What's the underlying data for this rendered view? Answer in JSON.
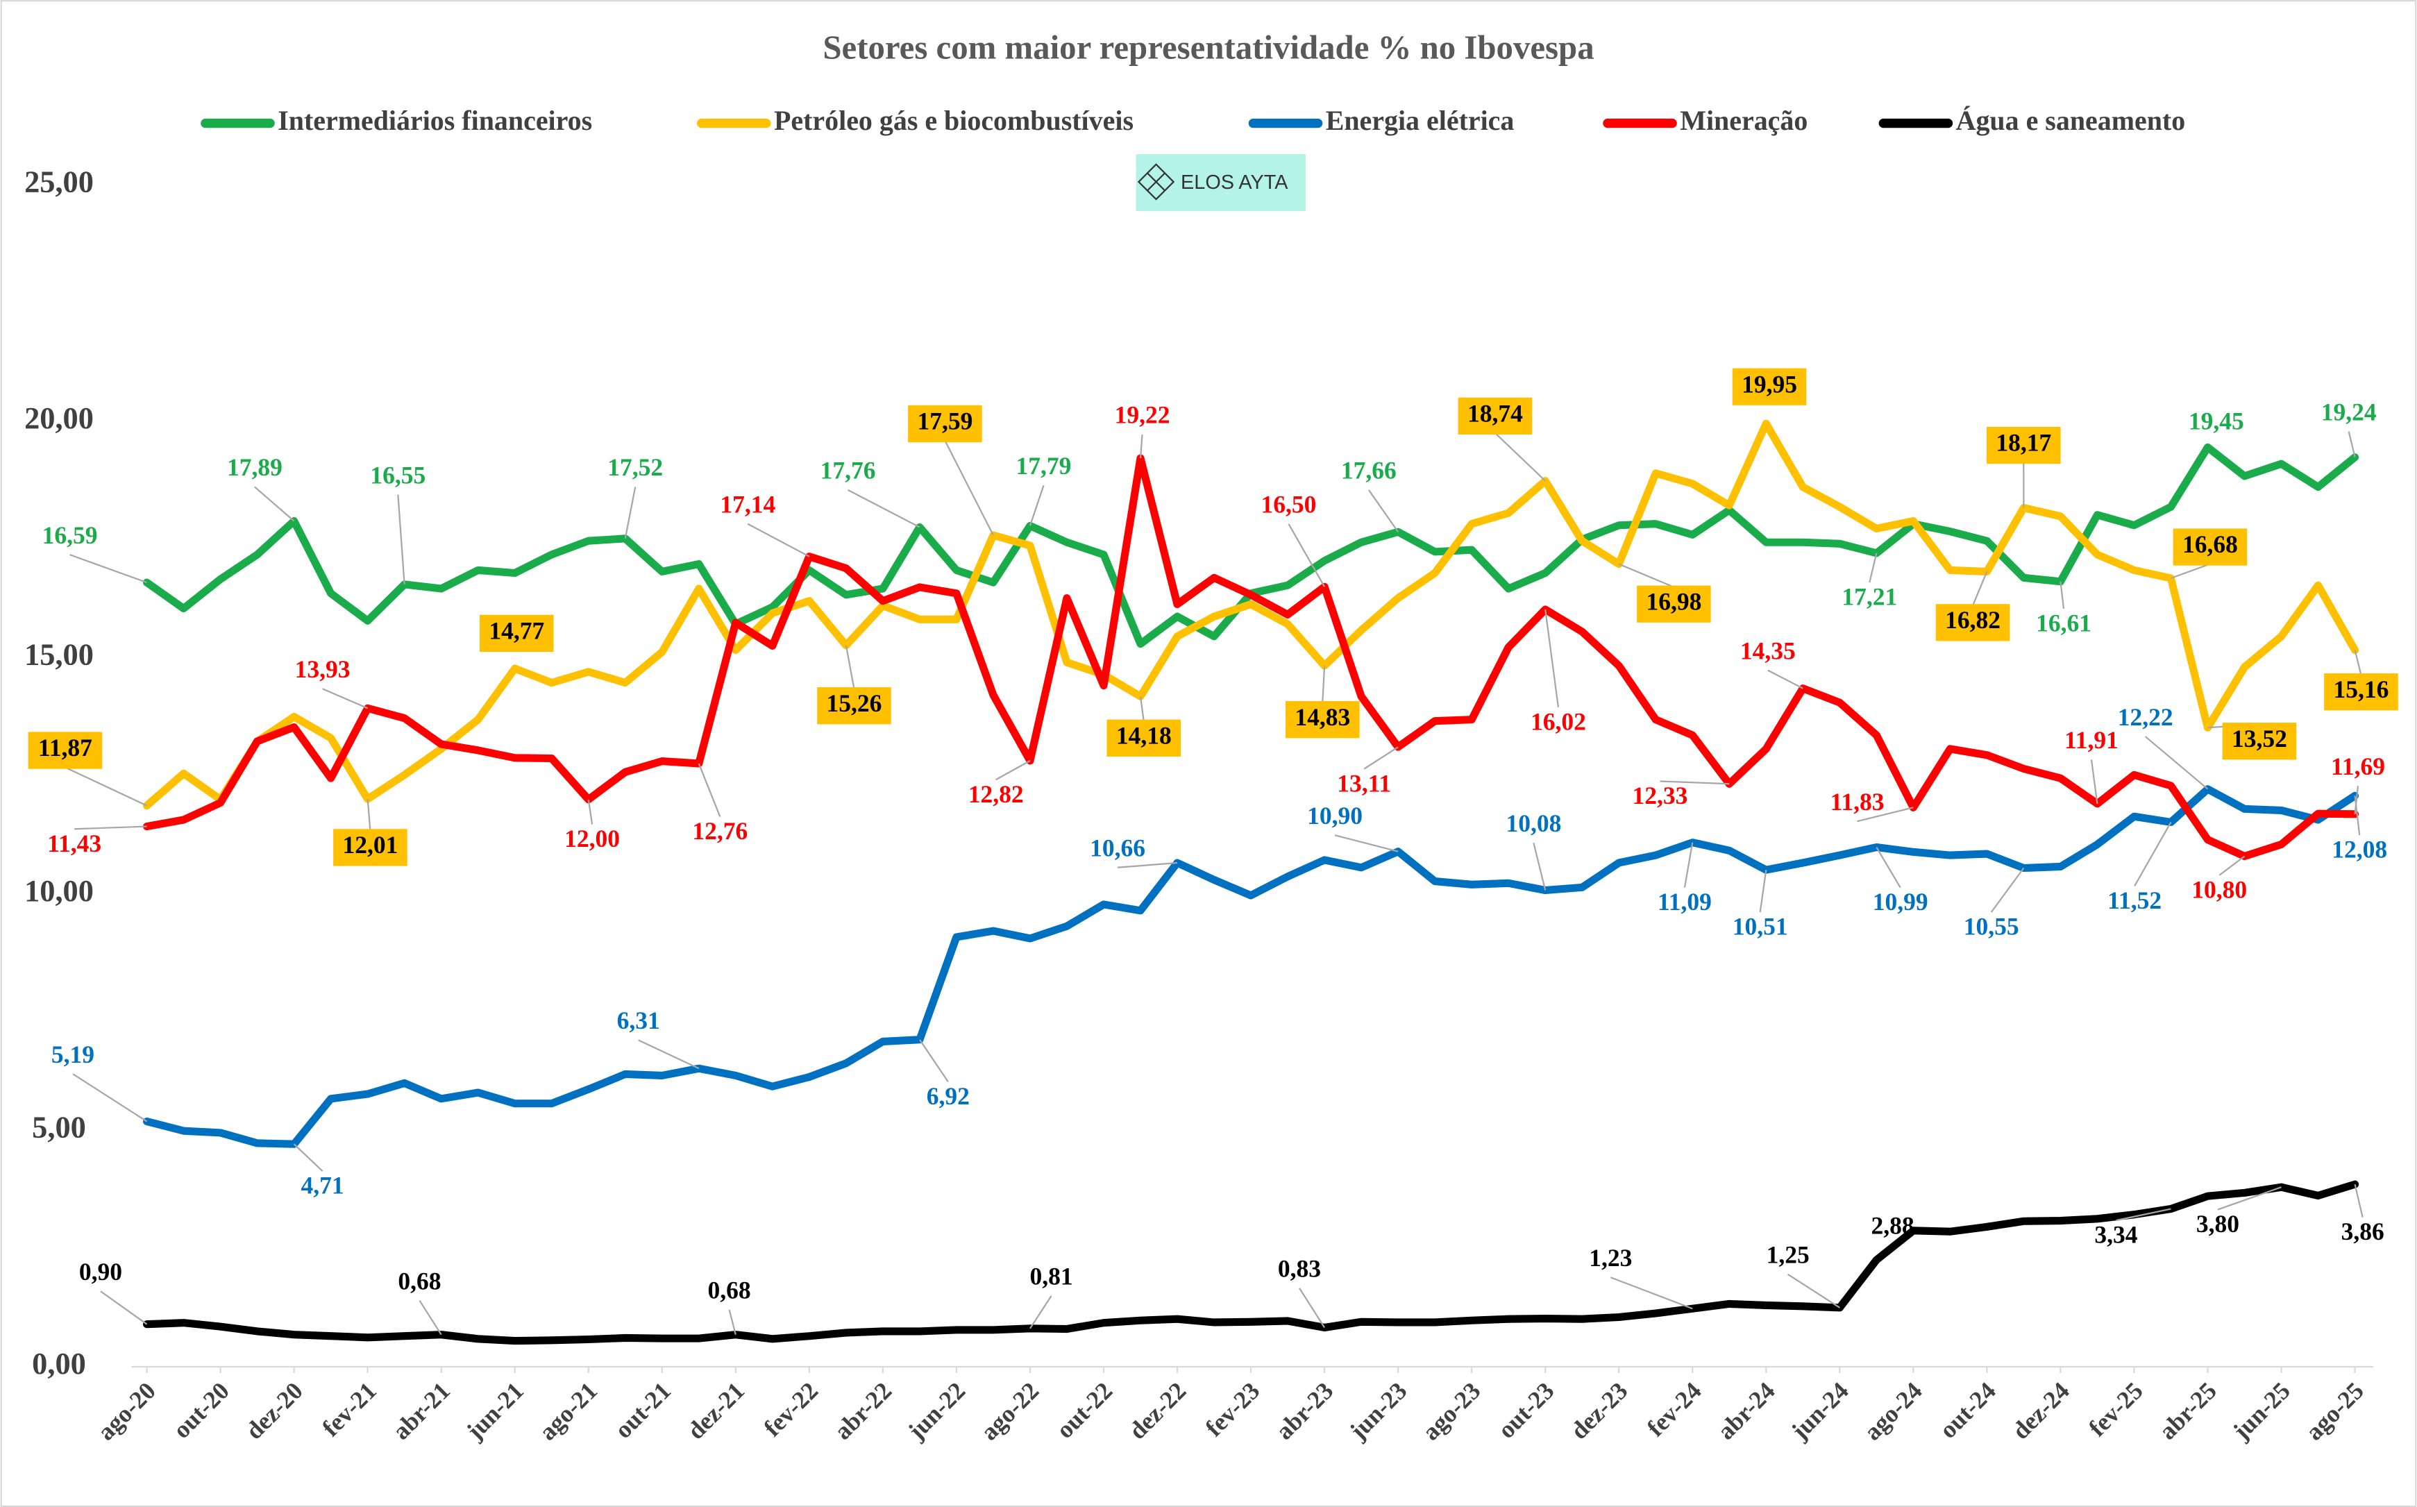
{
  "chart_data": {
    "type": "line",
    "title": "Setores com maior representatividade % no Ibovespa",
    "logo_text": "ELOS AYTA",
    "categories": [
      "ago-20",
      null,
      "out-20",
      null,
      "dez-20",
      null,
      "fev-21",
      null,
      "abr-21",
      null,
      "jun-21",
      null,
      "ago-21",
      null,
      "out-21",
      null,
      "dez-21",
      null,
      "fev-22",
      null,
      "abr-22",
      null,
      "jun-22",
      null,
      "ago-22",
      null,
      "out-22",
      null,
      "dez-22",
      null,
      "fev-23",
      null,
      "abr-23",
      null,
      "jun-23",
      null,
      "ago-23",
      null,
      "out-23",
      null,
      "dez-23",
      null,
      "fev-24",
      null,
      "abr-24",
      null,
      "jun-24",
      null,
      "ago-24",
      null,
      "out-24",
      null,
      "dez-24",
      null,
      "fev-25",
      null,
      "abr-25",
      null,
      "jun-25",
      null,
      "ago-25"
    ],
    "ylim": [
      0,
      25
    ],
    "yticks": [
      {
        "value": 0,
        "label": "0,00"
      },
      {
        "value": 5,
        "label": "5,00"
      },
      {
        "value": 10,
        "label": "10,00"
      },
      {
        "value": 15,
        "label": "15,00"
      },
      {
        "value": 20,
        "label": "20,00"
      },
      {
        "value": 25,
        "label": "25,00"
      }
    ],
    "legend": "top",
    "series": [
      {
        "name": "Intermediários financeiros",
        "color": "#1aab4b",
        "values": [
          16.59,
          16.04,
          16.66,
          17.18,
          17.89,
          16.36,
          15.78,
          16.55,
          16.46,
          16.85,
          16.79,
          17.18,
          17.47,
          17.52,
          16.82,
          16.98,
          15.71,
          16.07,
          16.85,
          16.33,
          16.46,
          17.76,
          16.85,
          16.59,
          17.79,
          17.44,
          17.18,
          15.29,
          15.87,
          15.45,
          16.36,
          16.53,
          17.05,
          17.44,
          17.66,
          17.24,
          17.28,
          16.46,
          16.79,
          17.5,
          17.8,
          17.83,
          17.6,
          18.12,
          17.44,
          17.44,
          17.41,
          17.21,
          17.83,
          17.67,
          17.47,
          16.69,
          16.61,
          18.02,
          17.8,
          18.19,
          19.45,
          18.84,
          19.1,
          18.61,
          19.24
        ],
        "value_labels": [
          "16,59",
          null,
          null,
          null,
          "17,89",
          null,
          null,
          "16,55",
          null,
          null,
          null,
          null,
          null,
          "17,52",
          null,
          null,
          null,
          null,
          null,
          null,
          null,
          "17,76",
          null,
          null,
          "17,79",
          null,
          null,
          null,
          null,
          null,
          null,
          null,
          null,
          null,
          "17,66",
          null,
          null,
          null,
          null,
          null,
          null,
          null,
          null,
          null,
          null,
          null,
          null,
          "17,21",
          null,
          null,
          null,
          null,
          "16,61",
          null,
          null,
          null,
          "19,45",
          null,
          null,
          null,
          "19,24"
        ]
      },
      {
        "name": "Petróleo gás e biocombustíveis",
        "color": "#ffc000",
        "values": [
          11.87,
          12.55,
          12.0,
          13.23,
          13.75,
          13.3,
          12.01,
          12.52,
          13.07,
          13.69,
          14.77,
          14.47,
          14.7,
          14.47,
          15.12,
          16.46,
          15.16,
          15.94,
          16.2,
          15.26,
          16.1,
          15.81,
          15.81,
          17.59,
          17.37,
          14.9,
          14.64,
          14.18,
          15.45,
          15.87,
          16.13,
          15.71,
          14.83,
          15.58,
          16.26,
          16.79,
          17.83,
          18.06,
          18.74,
          17.47,
          16.98,
          18.9,
          18.68,
          18.22,
          19.95,
          18.61,
          18.19,
          17.73,
          17.89,
          16.85,
          16.82,
          18.17,
          17.99,
          17.18,
          16.85,
          16.68,
          13.52,
          14.8,
          15.45,
          16.53,
          15.16
        ],
        "value_labels": [
          "11,87",
          null,
          null,
          null,
          null,
          null,
          "12,01",
          null,
          null,
          null,
          "14,77",
          null,
          null,
          null,
          null,
          null,
          null,
          null,
          null,
          "15,26",
          null,
          null,
          null,
          "17,59",
          null,
          null,
          null,
          "14,18",
          null,
          null,
          null,
          null,
          "14,83",
          null,
          null,
          null,
          null,
          null,
          "18,74",
          null,
          "16,98",
          null,
          null,
          null,
          "19,95",
          null,
          null,
          null,
          null,
          null,
          "16,82",
          "18,17",
          null,
          null,
          null,
          "16,68",
          "13,52",
          null,
          null,
          null,
          "15,16"
        ]
      },
      {
        "name": "Energia elétrica",
        "color": "#0070c0",
        "values": [
          5.19,
          4.99,
          4.95,
          4.73,
          4.71,
          5.67,
          5.77,
          6.0,
          5.67,
          5.8,
          5.57,
          5.57,
          5.87,
          6.19,
          6.16,
          6.31,
          6.16,
          5.93,
          6.13,
          6.42,
          6.88,
          6.92,
          9.09,
          9.22,
          9.06,
          9.32,
          9.78,
          9.65,
          10.66,
          10.3,
          9.97,
          10.37,
          10.72,
          10.56,
          10.9,
          10.27,
          10.2,
          10.23,
          10.08,
          10.14,
          10.66,
          10.82,
          11.09,
          10.92,
          10.51,
          10.66,
          10.82,
          10.99,
          10.89,
          10.82,
          10.85,
          10.55,
          10.58,
          11.05,
          11.64,
          11.52,
          12.22,
          11.8,
          11.77,
          11.57,
          12.08
        ],
        "value_labels": [
          "5,19",
          null,
          null,
          null,
          "4,71",
          null,
          null,
          null,
          null,
          null,
          null,
          null,
          null,
          null,
          null,
          "6,31",
          null,
          null,
          null,
          null,
          null,
          "6,92",
          null,
          null,
          null,
          null,
          null,
          null,
          "10,66",
          null,
          null,
          null,
          null,
          null,
          "10,90",
          null,
          null,
          null,
          "10,08",
          null,
          null,
          null,
          "11,09",
          null,
          "10,51",
          null,
          null,
          "10,99",
          null,
          null,
          null,
          "10,55",
          null,
          null,
          null,
          "11,52",
          "12,22",
          null,
          null,
          null,
          "12,08"
        ]
      },
      {
        "name": "Mineração",
        "color": "#ff0000",
        "values": [
          11.43,
          11.57,
          11.93,
          13.23,
          13.53,
          12.45,
          13.93,
          13.72,
          13.17,
          13.04,
          12.88,
          12.87,
          12.0,
          12.58,
          12.81,
          12.76,
          15.74,
          15.25,
          17.14,
          16.89,
          16.2,
          16.49,
          16.36,
          14.21,
          12.82,
          16.26,
          14.41,
          19.22,
          16.13,
          16.69,
          16.33,
          15.91,
          16.5,
          14.18,
          13.11,
          13.66,
          13.69,
          15.22,
          16.02,
          15.55,
          14.83,
          13.69,
          13.36,
          12.33,
          13.07,
          14.35,
          14.05,
          13.36,
          11.83,
          13.07,
          12.94,
          12.65,
          12.45,
          11.91,
          12.52,
          12.29,
          11.15,
          10.8,
          11.05,
          11.7,
          11.69
        ],
        "value_labels": [
          "11,43",
          null,
          null,
          null,
          null,
          null,
          "13,93",
          null,
          null,
          null,
          null,
          null,
          "12,00",
          null,
          null,
          "12,76",
          null,
          null,
          "17,14",
          null,
          null,
          null,
          null,
          null,
          "12,82",
          null,
          null,
          "19,22",
          null,
          null,
          null,
          null,
          "16,50",
          null,
          "13,11",
          null,
          null,
          null,
          "16,02",
          null,
          null,
          null,
          null,
          "12,33",
          null,
          "14,35",
          null,
          null,
          "11,83",
          null,
          null,
          null,
          null,
          "11,91",
          null,
          null,
          null,
          "10,80",
          null,
          null,
          "11,69"
        ]
      },
      {
        "name": "Água e saneamento",
        "color": "#000000",
        "values": [
          0.9,
          0.93,
          0.85,
          0.75,
          0.68,
          0.65,
          0.62,
          0.65,
          0.68,
          0.59,
          0.55,
          0.56,
          0.58,
          0.61,
          0.6,
          0.6,
          0.68,
          0.59,
          0.65,
          0.72,
          0.75,
          0.75,
          0.78,
          0.78,
          0.81,
          0.8,
          0.93,
          0.98,
          1.01,
          0.94,
          0.95,
          0.97,
          0.83,
          0.95,
          0.94,
          0.94,
          0.98,
          1.01,
          1.02,
          1.01,
          1.05,
          1.13,
          1.23,
          1.33,
          1.3,
          1.28,
          1.25,
          2.26,
          2.88,
          2.86,
          2.96,
          3.08,
          3.09,
          3.13,
          3.22,
          3.34,
          3.61,
          3.68,
          3.8,
          3.62,
          3.86
        ],
        "value_labels": [
          "0,90",
          null,
          null,
          null,
          null,
          null,
          null,
          null,
          "0,68",
          null,
          null,
          null,
          null,
          null,
          null,
          null,
          "0,68",
          null,
          null,
          null,
          null,
          null,
          null,
          null,
          "0,81",
          null,
          null,
          null,
          null,
          null,
          null,
          null,
          "0,83",
          null,
          null,
          null,
          null,
          null,
          null,
          null,
          null,
          null,
          "1,23",
          null,
          null,
          null,
          "1,25",
          null,
          "2,88",
          null,
          null,
          null,
          null,
          null,
          null,
          "3,34",
          null,
          null,
          "3,80",
          null,
          "3,86"
        ]
      }
    ]
  }
}
